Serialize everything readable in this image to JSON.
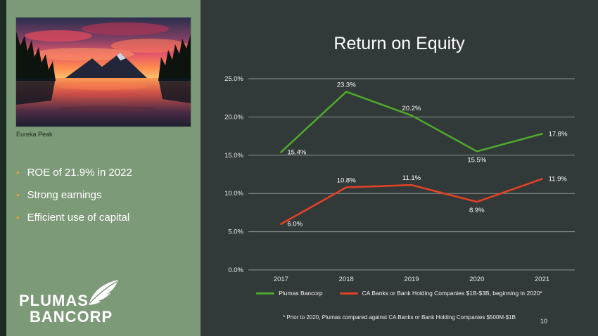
{
  "slide": {
    "title": "Return on Equity",
    "page_number": "10",
    "footnote": "* Prior to 2020, Plumas compared against CA Banks or Bank Holding Companies $500M-$1B"
  },
  "sidebar": {
    "photo_caption": "Eureka Peak",
    "bullets": [
      "ROE of 21.9% in 2022",
      "Strong earnings",
      "Efficient use of capital"
    ],
    "logo_line1": "PLUMAS",
    "logo_line2": "BANCORP",
    "colors": {
      "panel_green": "#7d9a78",
      "bullet_gold": "#e2a43d"
    }
  },
  "chart_data": {
    "type": "line",
    "title": "Return on Equity",
    "xlabel": "",
    "ylabel": "",
    "categories": [
      "2017",
      "2018",
      "2019",
      "2020",
      "2021"
    ],
    "series": [
      {
        "name": "Plumas Bancorp",
        "color": "#4ea72c",
        "values": [
          15.4,
          23.3,
          20.2,
          15.5,
          17.8
        ],
        "label_placements": [
          "right",
          "above",
          "above",
          "below",
          "right"
        ]
      },
      {
        "name": "CA Banks or Bank Holding Companies $1B-$3B, beginning in 2020*",
        "color": "#e04224",
        "values": [
          6.0,
          10.8,
          11.1,
          8.9,
          11.9
        ],
        "label_placements": [
          "right",
          "above",
          "above",
          "below",
          "right"
        ]
      }
    ],
    "y_ticks": [
      "0.0%",
      "5.0%",
      "10.0%",
      "15.0%",
      "20.0%",
      "25.0%"
    ],
    "ylim": [
      0,
      25
    ],
    "grid": true,
    "data_labels": true,
    "legend_position": "bottom",
    "background": "#323939"
  }
}
